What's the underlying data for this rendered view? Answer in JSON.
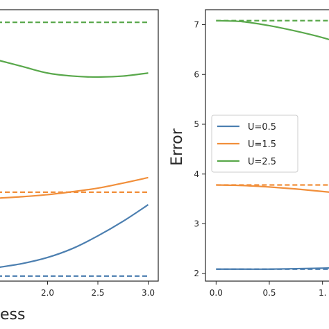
{
  "chart_data": [
    {
      "type": "line",
      "panel": "left",
      "xlabel": "ess",
      "ylabel": "",
      "xlim": [
        1.5,
        3.1
      ],
      "ylim": [
        1.95,
        7.35
      ],
      "xticks": [
        2.0,
        2.5,
        3.0
      ],
      "xtick_labels": [
        "2.0",
        "2.5",
        "3.0"
      ],
      "series": [
        {
          "color": "#4c7fb0",
          "style": "solid",
          "x": [
            1.5,
            1.75,
            2.0,
            2.25,
            2.5,
            2.75,
            3.0
          ],
          "y": [
            2.22,
            2.3,
            2.42,
            2.6,
            2.85,
            3.14,
            3.47
          ]
        },
        {
          "color": "#f18f3b",
          "style": "solid",
          "x": [
            1.5,
            1.75,
            2.0,
            2.25,
            2.5,
            2.75,
            3.0
          ],
          "y": [
            3.6,
            3.63,
            3.67,
            3.73,
            3.8,
            3.9,
            4.01
          ]
        },
        {
          "color": "#59a84b",
          "style": "solid",
          "x": [
            1.5,
            1.75,
            2.0,
            2.25,
            2.5,
            2.75,
            3.0
          ],
          "y": [
            6.35,
            6.22,
            6.09,
            6.03,
            6.01,
            6.03,
            6.09
          ]
        },
        {
          "color": "#4c7fb0",
          "style": "dashed",
          "x": [
            1.5,
            3.0
          ],
          "y": [
            2.05,
            2.05
          ]
        },
        {
          "color": "#f18f3b",
          "style": "dashed",
          "x": [
            1.5,
            3.0
          ],
          "y": [
            3.72,
            3.72
          ]
        },
        {
          "color": "#59a84b",
          "style": "dashed",
          "x": [
            1.5,
            3.0
          ],
          "y": [
            7.1,
            7.1
          ]
        }
      ]
    },
    {
      "type": "line",
      "panel": "right",
      "xlabel": "",
      "ylabel": "Error",
      "xlim": [
        -0.1,
        1.1
      ],
      "ylim": [
        1.85,
        7.3
      ],
      "xticks": [
        0.0,
        0.5,
        1.0
      ],
      "xtick_labels": [
        "0.0",
        "0.5",
        "1."
      ],
      "yticks": [
        2,
        3,
        4,
        5,
        6,
        7
      ],
      "ytick_labels": [
        "2",
        "3",
        "4",
        "5",
        "6",
        "7"
      ],
      "legend": {
        "placement": "center-left",
        "entries": [
          {
            "label": "U=0.5",
            "color": "#4c7fb0"
          },
          {
            "label": "U=1.5",
            "color": "#f18f3b"
          },
          {
            "label": "U=2.5",
            "color": "#59a84b"
          }
        ]
      },
      "series": [
        {
          "name": "U=0.5",
          "color": "#4c7fb0",
          "style": "solid",
          "x": [
            0.0,
            0.25,
            0.5,
            0.75,
            1.0,
            1.15
          ],
          "y": [
            2.09,
            2.09,
            2.09,
            2.1,
            2.11,
            2.12
          ]
        },
        {
          "name": "U=1.5",
          "color": "#f18f3b",
          "style": "solid",
          "x": [
            0.0,
            0.25,
            0.5,
            0.75,
            1.0,
            1.15
          ],
          "y": [
            3.78,
            3.77,
            3.74,
            3.7,
            3.65,
            3.62
          ]
        },
        {
          "name": "U=2.5",
          "color": "#59a84b",
          "style": "solid",
          "x": [
            0.0,
            0.25,
            0.5,
            0.75,
            1.0,
            1.15
          ],
          "y": [
            7.08,
            7.06,
            6.98,
            6.87,
            6.74,
            6.64
          ]
        },
        {
          "color": "#4c7fb0",
          "style": "dashed",
          "x": [
            0.0,
            1.15
          ],
          "y": [
            2.09,
            2.09
          ]
        },
        {
          "color": "#f18f3b",
          "style": "dashed",
          "x": [
            0.0,
            1.15
          ],
          "y": [
            3.78,
            3.78
          ]
        },
        {
          "color": "#59a84b",
          "style": "dashed",
          "x": [
            0.0,
            1.15
          ],
          "y": [
            7.08,
            7.08
          ]
        }
      ]
    }
  ]
}
